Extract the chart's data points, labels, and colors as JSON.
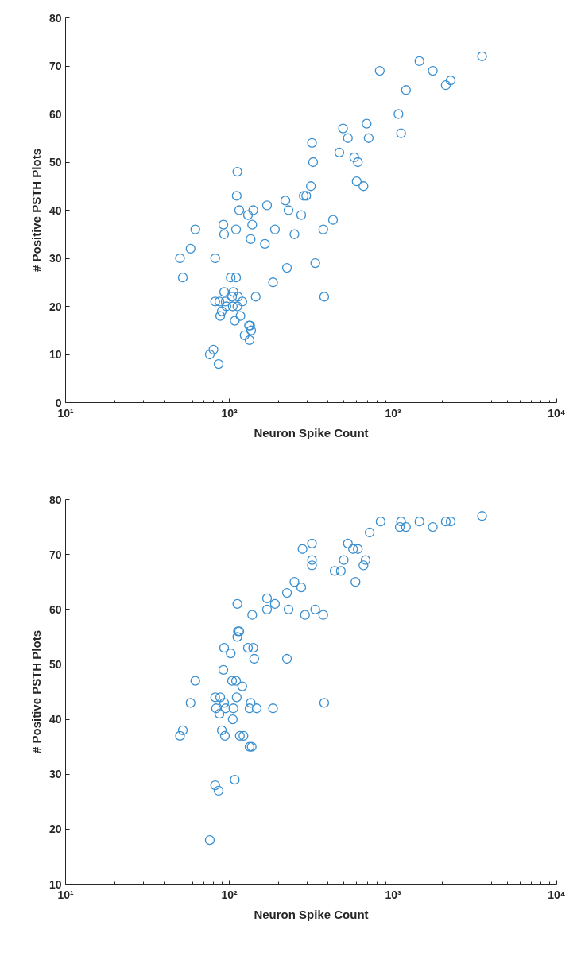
{
  "chart_data": [
    {
      "type": "scatter",
      "xlabel": "Neuron Spike Count",
      "ylabel": "# Positive PSTH Plots",
      "log": "x",
      "grid": false,
      "marker": "circle",
      "xlim": [
        10,
        10000
      ],
      "xticks": [
        {
          "value": 10,
          "label": "10¹"
        },
        {
          "value": 100,
          "label": "10²"
        },
        {
          "value": 1000,
          "label": "10³"
        },
        {
          "value": 10000,
          "label": "10⁴"
        }
      ],
      "ylim": [
        0,
        80
      ],
      "yticks": [
        0,
        10,
        20,
        30,
        40,
        50,
        60,
        70,
        80
      ],
      "series": [
        {
          "color": "#3a8fd0",
          "x": [
            50,
            52,
            58,
            62,
            76,
            80,
            82,
            82,
            86,
            87,
            88,
            90,
            92,
            93,
            93,
            95,
            96,
            102,
            104,
            105,
            106,
            108,
            110,
            110,
            111,
            112,
            112,
            113,
            115,
            117,
            120,
            124,
            130,
            132,
            133,
            134,
            135,
            136,
            138,
            140,
            145,
            165,
            170,
            185,
            190,
            220,
            225,
            230,
            250,
            275,
            285,
            295,
            315,
            320,
            325,
            335,
            375,
            380,
            430,
            470,
            495,
            530,
            580,
            600,
            610,
            660,
            690,
            710,
            830,
            1080,
            1120,
            1200,
            1450,
            1750,
            2100,
            2250,
            3500
          ],
          "values": [
            30,
            26,
            32,
            36,
            10,
            11,
            21,
            30,
            8,
            21,
            18,
            19,
            37,
            23,
            35,
            21,
            20,
            26,
            22,
            20,
            23,
            17,
            26,
            36,
            43,
            48,
            20,
            22,
            40,
            18,
            21,
            14,
            39,
            16,
            13,
            16,
            34,
            15,
            37,
            40,
            22,
            33,
            41,
            25,
            36,
            42,
            28,
            40,
            35,
            39,
            43,
            43,
            45,
            54,
            50,
            29,
            36,
            22,
            38,
            52,
            57,
            55,
            51,
            46,
            50,
            45,
            58,
            55,
            69,
            60,
            56,
            65,
            71,
            69,
            66,
            67,
            72
          ]
        }
      ]
    },
    {
      "type": "scatter",
      "xlabel": "Neuron Spike Count",
      "ylabel": "# Positive PSTH Plots",
      "log": "x",
      "grid": false,
      "marker": "circle",
      "xlim": [
        10,
        10000
      ],
      "xticks": [
        {
          "value": 10,
          "label": "10¹"
        },
        {
          "value": 100,
          "label": "10²"
        },
        {
          "value": 1000,
          "label": "10³"
        },
        {
          "value": 10000,
          "label": "10⁴"
        }
      ],
      "ylim": [
        10,
        80
      ],
      "yticks": [
        10,
        20,
        30,
        40,
        50,
        60,
        70,
        80
      ],
      "series": [
        {
          "color": "#3a8fd0",
          "x": [
            50,
            52,
            58,
            62,
            76,
            82,
            82,
            83,
            86,
            87,
            88,
            90,
            92,
            93,
            93,
            94,
            95,
            102,
            104,
            105,
            106,
            108,
            110,
            111,
            112,
            112,
            113,
            115,
            116,
            120,
            122,
            130,
            133,
            133,
            135,
            137,
            138,
            140,
            142,
            147,
            170,
            170,
            185,
            190,
            225,
            225,
            230,
            250,
            275,
            280,
            290,
            320,
            320,
            320,
            335,
            375,
            380,
            440,
            480,
            500,
            530,
            570,
            590,
            610,
            660,
            680,
            720,
            840,
            1100,
            1120,
            1200,
            1450,
            1750,
            2100,
            2250,
            3500
          ],
          "values": [
            37,
            38,
            43,
            47,
            18,
            28,
            44,
            42,
            27,
            41,
            44,
            38,
            49,
            43,
            53,
            37,
            42,
            52,
            47,
            40,
            42,
            29,
            47,
            44,
            55,
            61,
            56,
            56,
            37,
            46,
            37,
            53,
            35,
            42,
            43,
            35,
            59,
            53,
            51,
            42,
            60,
            62,
            42,
            61,
            63,
            51,
            60,
            65,
            64,
            71,
            59,
            72,
            69,
            68,
            60,
            59,
            43,
            67,
            67,
            69,
            72,
            71,
            65,
            71,
            68,
            69,
            74,
            76,
            75,
            76,
            75,
            76,
            75,
            76,
            76,
            77
          ]
        }
      ]
    }
  ]
}
